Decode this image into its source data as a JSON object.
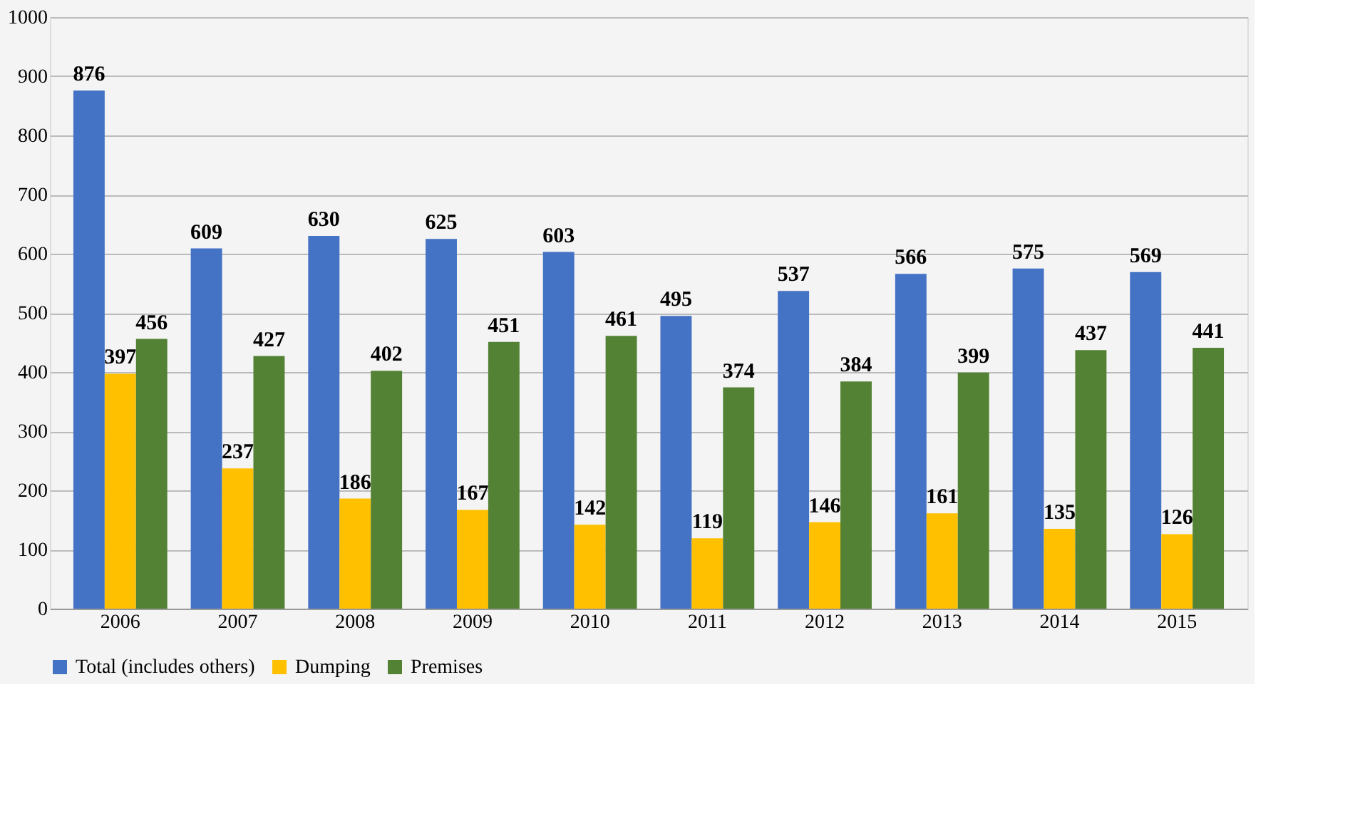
{
  "chart_data": {
    "type": "bar",
    "categories": [
      "2006",
      "2007",
      "2008",
      "2009",
      "2010",
      "2011",
      "2012",
      "2013",
      "2014",
      "2015"
    ],
    "series": [
      {
        "name": "Total (includes others)",
        "color": "#4472c4",
        "values": [
          876,
          609,
          630,
          625,
          603,
          495,
          537,
          566,
          575,
          569
        ]
      },
      {
        "name": "Dumping",
        "color": "#ffc000",
        "values": [
          397,
          237,
          186,
          167,
          142,
          119,
          146,
          161,
          135,
          126
        ]
      },
      {
        "name": "Premises",
        "color": "#548235",
        "values": [
          456,
          427,
          402,
          451,
          461,
          374,
          384,
          399,
          437,
          441
        ]
      }
    ],
    "ylim": [
      0,
      1000
    ],
    "yticks": [
      0,
      100,
      200,
      300,
      400,
      500,
      600,
      700,
      800,
      900,
      1000
    ],
    "grid": "y",
    "legend": "bottom",
    "data_labels": true
  }
}
